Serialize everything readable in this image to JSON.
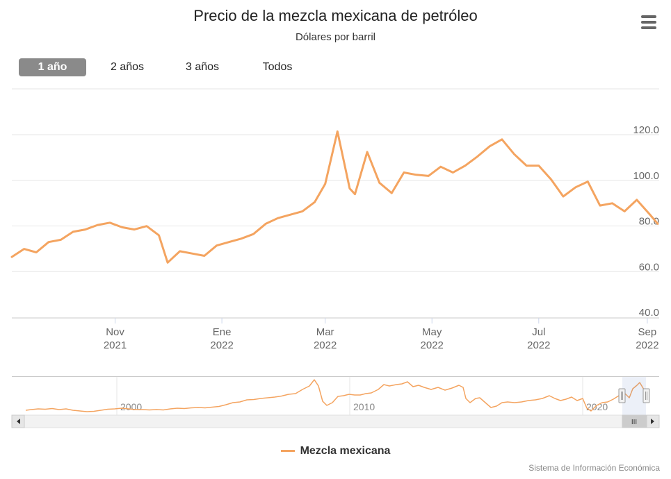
{
  "header": {
    "title": "Precio de la mezcla mexicana de petróleo",
    "subtitle": "Dólares por barril"
  },
  "range_selector": {
    "buttons": [
      {
        "label": "1 año",
        "active": true
      },
      {
        "label": "2 años",
        "active": false
      },
      {
        "label": "3 años",
        "active": false
      },
      {
        "label": "Todos",
        "active": false
      }
    ]
  },
  "navigator": {
    "year_labels": [
      "2000",
      "2010",
      "2020"
    ],
    "scroll_handle_glyph": "III"
  },
  "legend": {
    "label": "Mezcla mexicana",
    "color": "#f4a460"
  },
  "credits": "Sistema de Información Económica",
  "colors": {
    "series": "#f4a460",
    "grid": "#e6e6e6",
    "active_button": "#8a8a8a"
  },
  "chart_data": {
    "type": "line",
    "title": "Precio de la mezcla mexicana de petróleo",
    "subtitle": "Dólares por barril",
    "ylim": [
      40,
      120
    ],
    "y_ticks": [
      "40.0",
      "60.0",
      "80.0",
      "100.0",
      "120.0"
    ],
    "x_ticks": [
      {
        "date": "2021-11-01",
        "month": "Nov",
        "year": "2021"
      },
      {
        "date": "2022-01-01",
        "month": "Ene",
        "year": "2022"
      },
      {
        "date": "2022-03-01",
        "month": "Mar",
        "year": "2022"
      },
      {
        "date": "2022-05-01",
        "month": "May",
        "year": "2022"
      },
      {
        "date": "2022-07-01",
        "month": "Jul",
        "year": "2022"
      },
      {
        "date": "2022-09-01",
        "month": "Sep",
        "year": "2022"
      }
    ],
    "grid": true,
    "legend_position": "bottom",
    "series": [
      {
        "name": "Mezcla mexicana",
        "points": [
          [
            "2021-09-03",
            64
          ],
          [
            "2021-09-10",
            67.5
          ],
          [
            "2021-09-17",
            66
          ],
          [
            "2021-09-24",
            70.5
          ],
          [
            "2021-10-01",
            71.5
          ],
          [
            "2021-10-08",
            75
          ],
          [
            "2021-10-15",
            76
          ],
          [
            "2021-10-22",
            78
          ],
          [
            "2021-10-29",
            79
          ],
          [
            "2021-11-05",
            77
          ],
          [
            "2021-11-12",
            76
          ],
          [
            "2021-11-19",
            77.5
          ],
          [
            "2021-11-26",
            73.5
          ],
          [
            "2021-12-01",
            61.5
          ],
          [
            "2021-12-08",
            66.5
          ],
          [
            "2021-12-15",
            65.5
          ],
          [
            "2021-12-22",
            64.5
          ],
          [
            "2021-12-29",
            69
          ],
          [
            "2022-01-05",
            70.5
          ],
          [
            "2022-01-12",
            72
          ],
          [
            "2022-01-19",
            74
          ],
          [
            "2022-01-26",
            78.5
          ],
          [
            "2022-02-02",
            81
          ],
          [
            "2022-02-09",
            82.5
          ],
          [
            "2022-02-16",
            84
          ],
          [
            "2022-02-23",
            88
          ],
          [
            "2022-03-01",
            96
          ],
          [
            "2022-03-08",
            119
          ],
          [
            "2022-03-15",
            94
          ],
          [
            "2022-03-18",
            91.5
          ],
          [
            "2022-03-25",
            110
          ],
          [
            "2022-04-01",
            96.5
          ],
          [
            "2022-04-08",
            92
          ],
          [
            "2022-04-15",
            101
          ],
          [
            "2022-04-22",
            100
          ],
          [
            "2022-04-29",
            99.5
          ],
          [
            "2022-05-06",
            103.5
          ],
          [
            "2022-05-13",
            101
          ],
          [
            "2022-05-20",
            104
          ],
          [
            "2022-05-27",
            108
          ],
          [
            "2022-06-03",
            112.5
          ],
          [
            "2022-06-10",
            115.5
          ],
          [
            "2022-06-17",
            109
          ],
          [
            "2022-06-24",
            104
          ],
          [
            "2022-07-01",
            104
          ],
          [
            "2022-07-08",
            98
          ],
          [
            "2022-07-15",
            90.5
          ],
          [
            "2022-07-22",
            94.5
          ],
          [
            "2022-07-29",
            97
          ],
          [
            "2022-08-05",
            86.5
          ],
          [
            "2022-08-12",
            87.5
          ],
          [
            "2022-08-19",
            84
          ],
          [
            "2022-08-26",
            89
          ],
          [
            "2022-09-02",
            83
          ],
          [
            "2022-09-07",
            78.5
          ]
        ]
      }
    ]
  }
}
